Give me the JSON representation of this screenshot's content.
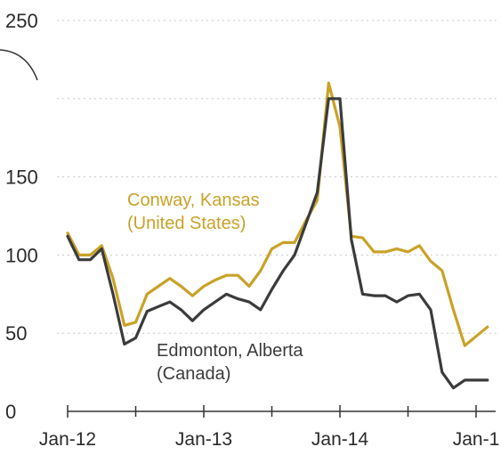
{
  "chart_data": {
    "type": "line",
    "title": "",
    "xlabel": "",
    "ylabel": "",
    "ylim": [
      0,
      250
    ],
    "y_ticks": [
      "0",
      "50",
      "100",
      "150",
      "",
      "250"
    ],
    "x_ticks": [
      {
        "label": "Jan-12",
        "t": 0
      },
      {
        "label": "Jan-13",
        "t": 12
      },
      {
        "label": "Jan-14",
        "t": 24
      },
      {
        "label": "Jan-1",
        "t": 36
      }
    ],
    "x_minor_ticks": [
      6,
      18,
      30
    ],
    "grid": "horizontal dotted",
    "series": [
      {
        "name": "Conway, Kansas (United States)",
        "color": "#c9a227",
        "label_lines": [
          "Conway, Kansas",
          "(United States)"
        ],
        "t": [
          0,
          1,
          2,
          3,
          4,
          5,
          6,
          7,
          8,
          9,
          10,
          11,
          12,
          13,
          14,
          15,
          16,
          17,
          18,
          19,
          20,
          21,
          22,
          23,
          24,
          25,
          26,
          27,
          28,
          29,
          30,
          31,
          32,
          33,
          34,
          35,
          36,
          37
        ],
        "values": [
          114,
          100,
          100,
          106,
          85,
          55,
          57,
          75,
          80,
          85,
          80,
          74,
          80,
          84,
          87,
          87,
          80,
          90,
          104,
          108,
          108,
          122,
          135,
          210,
          182,
          112,
          111,
          102,
          102,
          104,
          102,
          106,
          96,
          90,
          65,
          42,
          48,
          54
        ]
      },
      {
        "name": "Edmonton, Alberta (Canada)",
        "color": "#3b3b3b",
        "label_lines": [
          "Edmonton, Alberta",
          "(Canada)"
        ],
        "t": [
          0,
          1,
          2,
          3,
          4,
          5,
          6,
          7,
          8,
          9,
          10,
          11,
          12,
          13,
          14,
          15,
          16,
          17,
          18,
          19,
          20,
          21,
          22,
          23,
          24,
          25,
          26,
          27,
          28,
          29,
          30,
          31,
          32,
          33,
          34,
          35,
          36,
          37
        ],
        "values": [
          112,
          97,
          97,
          104,
          75,
          43,
          47,
          64,
          67,
          70,
          65,
          58,
          65,
          70,
          75,
          72,
          70,
          65,
          78,
          90,
          100,
          120,
          140,
          200,
          200,
          110,
          75,
          74,
          74,
          70,
          74,
          75,
          65,
          25,
          15,
          20,
          20,
          20
        ]
      }
    ]
  }
}
